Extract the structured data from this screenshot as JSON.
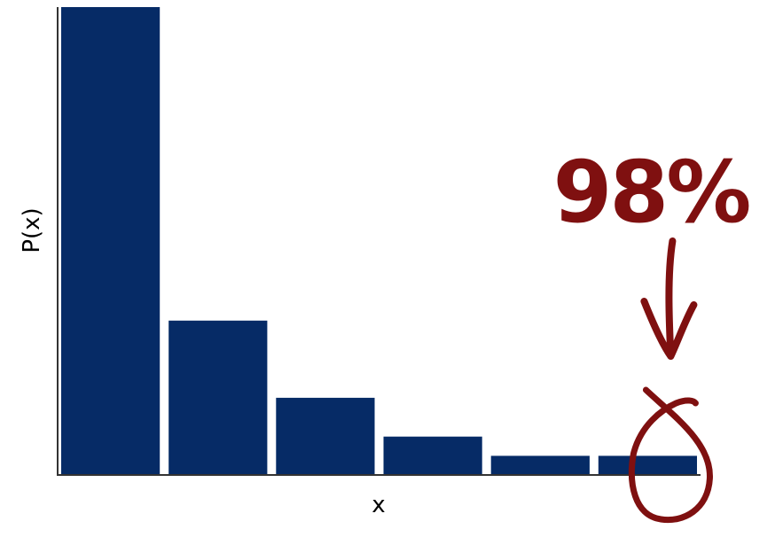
{
  "chart_data": {
    "type": "bar",
    "categories": [
      "",
      "",
      "",
      "",
      "",
      ""
    ],
    "values": [
      100,
      33,
      16.5,
      8.2,
      4.1,
      4.1
    ],
    "title": "",
    "xlabel": "x",
    "ylabel": "P(x)",
    "ylim": [
      0,
      100
    ],
    "grid": false,
    "bar_color": "#062b66",
    "annotation": {
      "text": "98%",
      "color": "#7f1010",
      "target_index": 5
    }
  }
}
